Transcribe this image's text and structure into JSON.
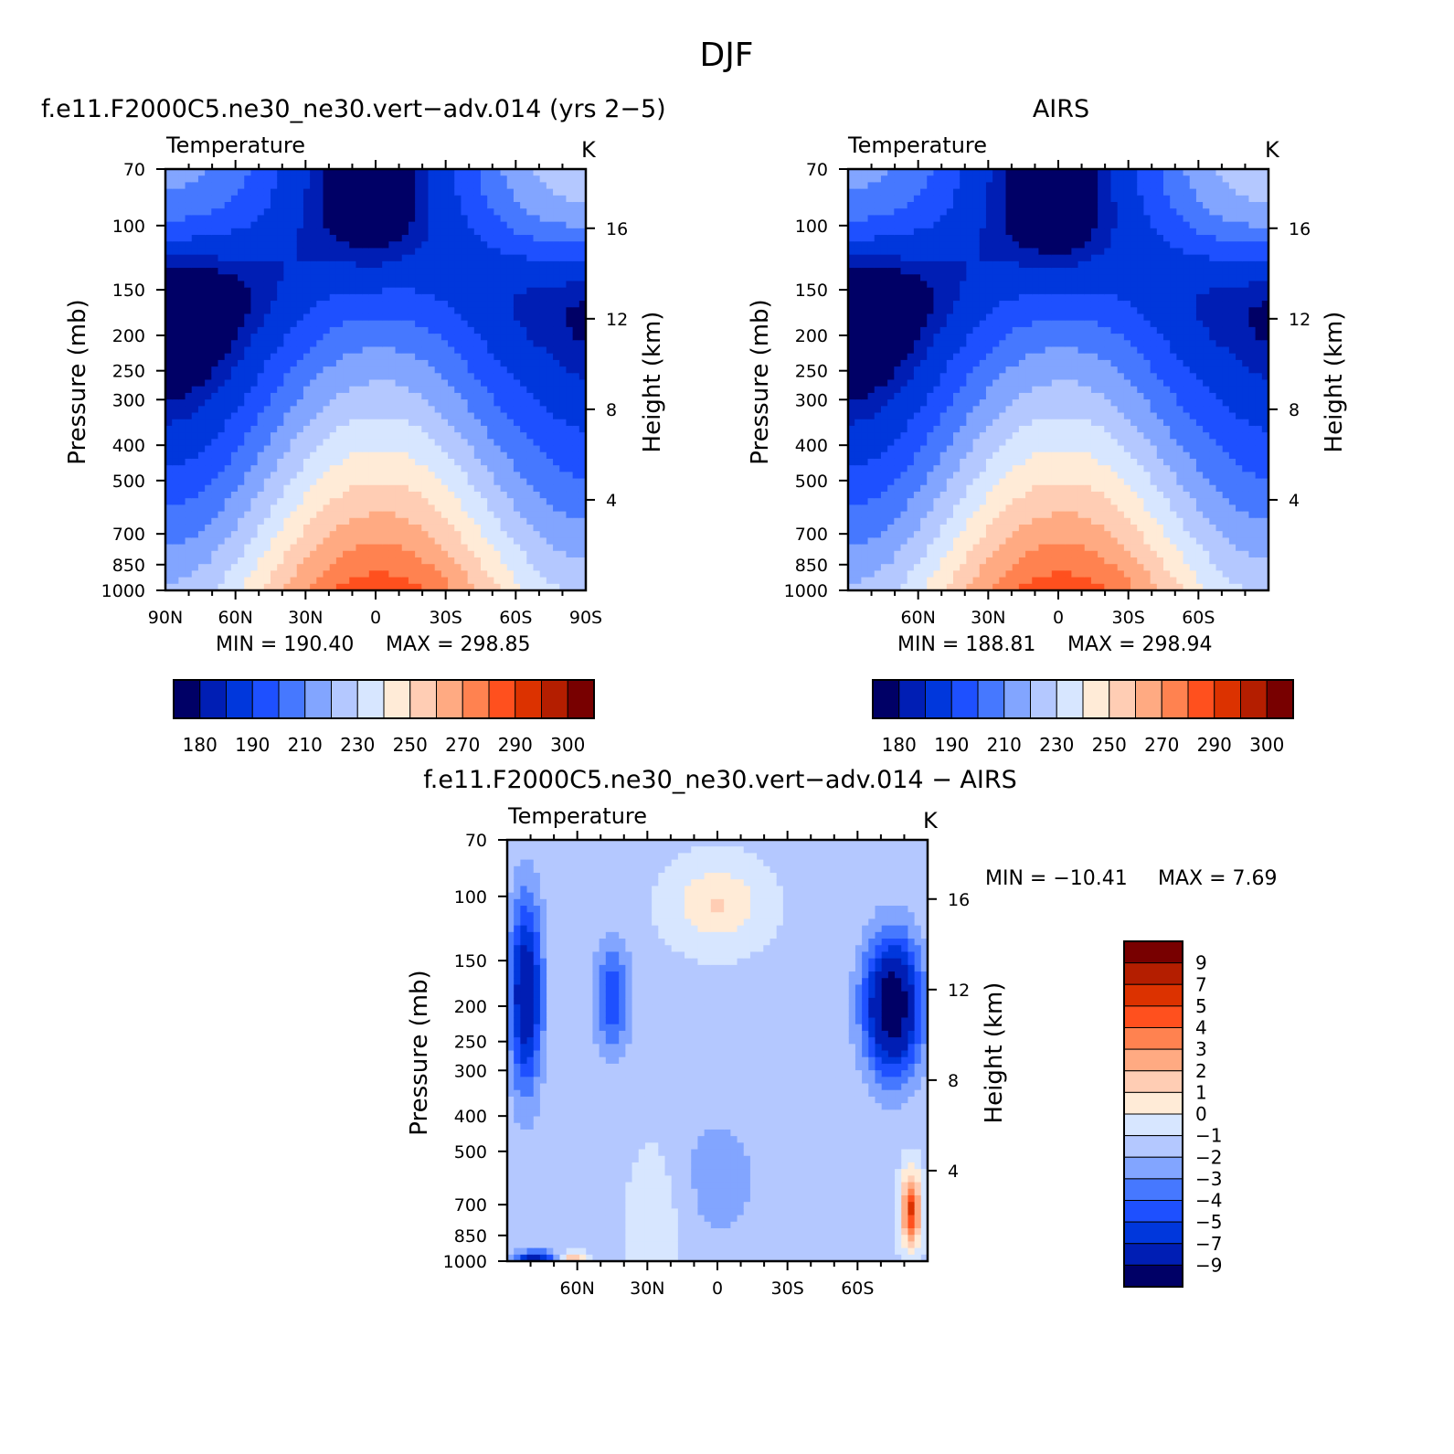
{
  "figure_title": "DJF",
  "chart_data": [
    {
      "type": "heatmap",
      "panel": "model",
      "title": "f.e11.F2000C5.ne30_ne30.vert−adv.014 (yrs 2−5)",
      "subtitle": "Temperature",
      "units": "K",
      "ylabel": "Pressure (mb)",
      "y2label": "Height (km)",
      "x_ticks": [
        "90N",
        "60N",
        "30N",
        "0",
        "30S",
        "60S",
        "90S"
      ],
      "x_tick_values": [
        90,
        60,
        30,
        0,
        -30,
        -60,
        -90
      ],
      "y_ticks": [
        "70",
        "100",
        "150",
        "200",
        "250",
        "300",
        "400",
        "500",
        "700",
        "850",
        "1000"
      ],
      "y_tick_values": [
        70,
        100,
        150,
        200,
        250,
        300,
        400,
        500,
        700,
        850,
        1000
      ],
      "y2_ticks": [
        "16",
        "12",
        "8",
        "4"
      ],
      "y2_tick_values": [
        16,
        12,
        8,
        4
      ],
      "min_label": "MIN = 190.40",
      "max_label": "MAX = 298.85",
      "min": 190.4,
      "max": 298.85,
      "log_y": true
    },
    {
      "type": "heatmap",
      "panel": "obs",
      "title": "AIRS",
      "subtitle": "Temperature",
      "units": "K",
      "ylabel": "Pressure (mb)",
      "y2label": "Height (km)",
      "x_ticks": [
        "60N",
        "30N",
        "0",
        "30S",
        "60S"
      ],
      "x_tick_values": [
        60,
        30,
        0,
        -30,
        -60
      ],
      "y_ticks": [
        "70",
        "100",
        "150",
        "200",
        "250",
        "300",
        "400",
        "500",
        "700",
        "850",
        "1000"
      ],
      "y_tick_values": [
        70,
        100,
        150,
        200,
        250,
        300,
        400,
        500,
        700,
        850,
        1000
      ],
      "y2_ticks": [
        "16",
        "12",
        "8",
        "4"
      ],
      "y2_tick_values": [
        16,
        12,
        8,
        4
      ],
      "min_label": "MIN = 188.81",
      "max_label": "MAX = 298.94",
      "min": 188.81,
      "max": 298.94,
      "log_y": true
    },
    {
      "type": "heatmap",
      "panel": "diff",
      "title": "f.e11.F2000C5.ne30_ne30.vert−adv.014 − AIRS",
      "subtitle": "Temperature",
      "units": "K",
      "ylabel": "Pressure (mb)",
      "y2label": "Height (km)",
      "x_ticks": [
        "60N",
        "30N",
        "0",
        "30S",
        "60S"
      ],
      "x_tick_values": [
        60,
        30,
        0,
        -30,
        -60
      ],
      "y_ticks": [
        "70",
        "100",
        "150",
        "200",
        "250",
        "300",
        "400",
        "500",
        "700",
        "850",
        "1000"
      ],
      "y_tick_values": [
        70,
        100,
        150,
        200,
        250,
        300,
        400,
        500,
        700,
        850,
        1000
      ],
      "y2_ticks": [
        "16",
        "12",
        "8",
        "4"
      ],
      "y2_tick_values": [
        16,
        12,
        8,
        4
      ],
      "min_label": "MIN = −10.41",
      "max_label": "MAX = 7.69",
      "min": -10.41,
      "max": 7.69,
      "log_y": true
    }
  ],
  "colorbar_abs": {
    "colors": [
      "#000066",
      "#001eb4",
      "#0037dc",
      "#1e50ff",
      "#4678ff",
      "#82a5ff",
      "#b4c8ff",
      "#d7e6ff",
      "#ffebd7",
      "#ffcdb4",
      "#ffaa82",
      "#ff8250",
      "#ff501e",
      "#dc3200",
      "#b41e00",
      "#780000"
    ],
    "labels": [
      "180",
      "190",
      "210",
      "230",
      "250",
      "270",
      "290",
      "300"
    ]
  },
  "colorbar_diff": {
    "colors": [
      "#780000",
      "#b41e00",
      "#dc3200",
      "#ff501e",
      "#ff8250",
      "#ffaa82",
      "#ffcdb4",
      "#ffebd7",
      "#d7e6ff",
      "#b4c8ff",
      "#82a5ff",
      "#4678ff",
      "#1e50ff",
      "#0037dc",
      "#001eb4",
      "#000066"
    ],
    "labels": [
      "9",
      "7",
      "5",
      "4",
      "3",
      "2",
      "1",
      "0",
      "−1",
      "−2",
      "−3",
      "−4",
      "−5",
      "−7",
      "−9"
    ]
  }
}
